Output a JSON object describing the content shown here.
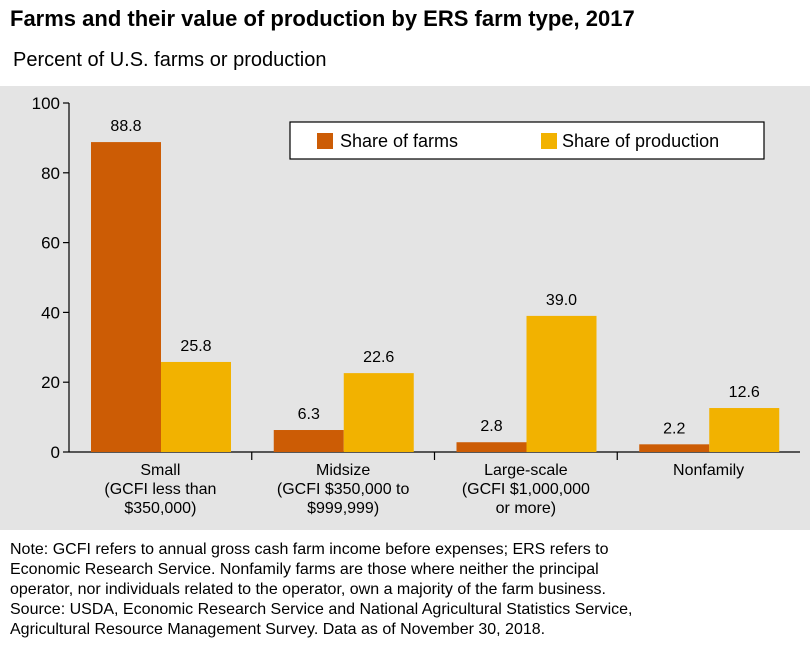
{
  "header": {
    "title": "Farms and their value of production by ERS farm type, 2017",
    "subtitle": "Percent of U.S. farms or production"
  },
  "chart_data": {
    "type": "bar",
    "title": "Farms and their value of production by ERS farm type, 2017",
    "ylabel": "Percent of U.S. farms or production",
    "xlabel": "",
    "categories": [
      [
        "Small",
        "(GCFI less than",
        "$350,000)"
      ],
      [
        "Midsize",
        "(GCFI $350,000 to",
        "$999,999)"
      ],
      [
        "Large-scale",
        "(GCFI $1,000,000",
        "or more)"
      ],
      [
        "Nonfamily"
      ]
    ],
    "series": [
      {
        "name": "Share of farms",
        "color": "#cc5c05",
        "values": [
          88.8,
          6.3,
          2.8,
          2.2
        ],
        "labels": [
          "88.8",
          "6.3",
          "2.8",
          "2.2"
        ]
      },
      {
        "name": "Share of production",
        "color": "#f2b200",
        "values": [
          25.8,
          22.6,
          39.0,
          12.6
        ],
        "labels": [
          "25.8",
          "22.6",
          "39.0",
          "12.6"
        ]
      }
    ],
    "ylim": [
      0,
      100
    ],
    "yticks": [
      0,
      20,
      40,
      60,
      80,
      100
    ],
    "grid": false,
    "legend": "top-right"
  },
  "note": {
    "lines": [
      "Note: GCFI refers to annual gross cash farm income before expenses; ERS refers to",
      "Economic Research Service. Nonfamily farms are those where neither the principal",
      "operator, nor individuals related to the operator, own a majority of the farm business.",
      "Source: USDA, Economic Research Service and National Agricultural Statistics Service,",
      "Agricultural Resource Management Survey. Data as of November 30, 2018."
    ]
  }
}
